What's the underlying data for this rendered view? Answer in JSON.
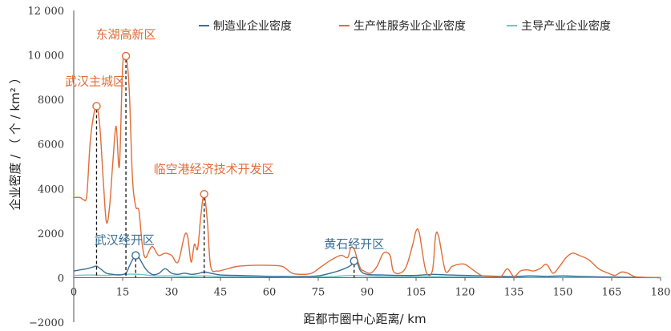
{
  "chart_data": {
    "type": "line",
    "xlabel": "距都市圈中心距离/ km",
    "ylabel": "企业密度 / （ 个 / km² ）",
    "xlim": [
      0,
      180
    ],
    "ylim": [
      -2000,
      12000
    ],
    "x_ticks": [
      "0",
      "15",
      "30",
      "45",
      "60",
      "75",
      "90",
      "105",
      "120",
      "135",
      "150",
      "165",
      "180"
    ],
    "x_tick_values": [
      0,
      15,
      30,
      45,
      60,
      75,
      90,
      105,
      120,
      135,
      150,
      165,
      180
    ],
    "y_ticks": [
      "−2000",
      "0",
      "2000",
      "4000",
      "6000",
      "8000",
      "10 000",
      "12 000"
    ],
    "y_tick_values": [
      -2000,
      0,
      2000,
      4000,
      6000,
      8000,
      10000,
      12000
    ],
    "legend_position": "top",
    "grid": false,
    "series": [
      {
        "name": "制造业企业密度",
        "color": "#3a6e95",
        "x": [
          0,
          2,
          4,
          6,
          7,
          8,
          10,
          12,
          14,
          16,
          17,
          18,
          19,
          20,
          22,
          24,
          26,
          28,
          30,
          32,
          34,
          36,
          38,
          40,
          42,
          45,
          50,
          55,
          60,
          65,
          70,
          75,
          80,
          83,
          85,
          86,
          87,
          88,
          90,
          95,
          100,
          105,
          110,
          115,
          120,
          125,
          130,
          135,
          140,
          145,
          150,
          155,
          160,
          165,
          170,
          175,
          180
        ],
        "y": [
          300,
          350,
          400,
          480,
          520,
          420,
          200,
          150,
          120,
          200,
          500,
          800,
          1000,
          900,
          400,
          150,
          180,
          400,
          200,
          150,
          200,
          150,
          180,
          250,
          200,
          120,
          100,
          80,
          60,
          50,
          50,
          80,
          250,
          400,
          550,
          750,
          650,
          300,
          150,
          120,
          100,
          100,
          150,
          120,
          100,
          80,
          60,
          50,
          80,
          60,
          80,
          60,
          40,
          30,
          20,
          10,
          0
        ]
      },
      {
        "name": "生产性服务业企业密度",
        "color": "#e06d38",
        "x": [
          0,
          2,
          3,
          4,
          5,
          6,
          7,
          8,
          9,
          10,
          11,
          12,
          13,
          14,
          15,
          16,
          17,
          18,
          19,
          20,
          21,
          22,
          24,
          26,
          28,
          30,
          32,
          34,
          35,
          36,
          37,
          38,
          39,
          40,
          41,
          42,
          44,
          46,
          50,
          55,
          60,
          64,
          67,
          70,
          73,
          76,
          79,
          82,
          84,
          85,
          86,
          87,
          88,
          89,
          91,
          93,
          95,
          97,
          98,
          100,
          102,
          104,
          105,
          106,
          108,
          110,
          111,
          112,
          114,
          116,
          118,
          120,
          122,
          125,
          128,
          131,
          133,
          135,
          137,
          139,
          141,
          143,
          145,
          147,
          149,
          151,
          153,
          155,
          158,
          161,
          164,
          166,
          168,
          170,
          172,
          175,
          180
        ],
        "y": [
          3600,
          3600,
          3500,
          3700,
          6000,
          7200,
          7700,
          6800,
          4500,
          2500,
          3200,
          5200,
          6800,
          5000,
          9500,
          9950,
          8500,
          4500,
          3200,
          3000,
          1500,
          900,
          1400,
          1000,
          1100,
          1000,
          700,
          1900,
          1800,
          700,
          1500,
          1300,
          2800,
          3750,
          2500,
          500,
          300,
          350,
          500,
          550,
          550,
          500,
          200,
          150,
          200,
          500,
          800,
          1000,
          900,
          1350,
          1300,
          800,
          400,
          300,
          200,
          500,
          1100,
          1000,
          300,
          200,
          500,
          1500,
          2100,
          2000,
          300,
          300,
          1900,
          1800,
          300,
          500,
          600,
          600,
          400,
          100,
          50,
          50,
          400,
          50,
          300,
          350,
          300,
          400,
          600,
          200,
          500,
          900,
          1100,
          1000,
          800,
          400,
          200,
          100,
          250,
          200,
          50,
          20,
          0
        ]
      },
      {
        "name": "主导产业企业密度",
        "color": "#6ec4cf",
        "x": [
          0,
          5,
          10,
          15,
          20,
          25,
          30,
          35,
          40,
          45,
          50,
          55,
          60,
          65,
          70,
          75,
          80,
          85,
          90,
          95,
          100,
          105,
          110,
          115,
          120,
          125,
          130,
          135,
          140,
          145,
          150,
          155,
          160,
          165,
          170,
          175,
          180
        ],
        "y": [
          100,
          120,
          100,
          150,
          150,
          80,
          80,
          60,
          80,
          50,
          50,
          40,
          40,
          30,
          30,
          40,
          60,
          100,
          80,
          50,
          60,
          50,
          60,
          40,
          40,
          30,
          30,
          30,
          20,
          20,
          20,
          20,
          10,
          10,
          10,
          0,
          0
        ]
      }
    ],
    "annotations": [
      {
        "label": "武汉主城区",
        "x": 7,
        "y": 7700,
        "color": "#e06d38"
      },
      {
        "label": "东湖高新区",
        "x": 16,
        "y": 9950,
        "color": "#e06d38"
      },
      {
        "label": "临空港经济技术开发区",
        "x": 40,
        "y": 3750,
        "color": "#e06d38"
      },
      {
        "label": "武汉经开区",
        "x": 19,
        "y": 1000,
        "color": "#3a6e95"
      },
      {
        "label": "黄石经开区",
        "x": 86,
        "y": 750,
        "color": "#3a6e95"
      }
    ]
  }
}
